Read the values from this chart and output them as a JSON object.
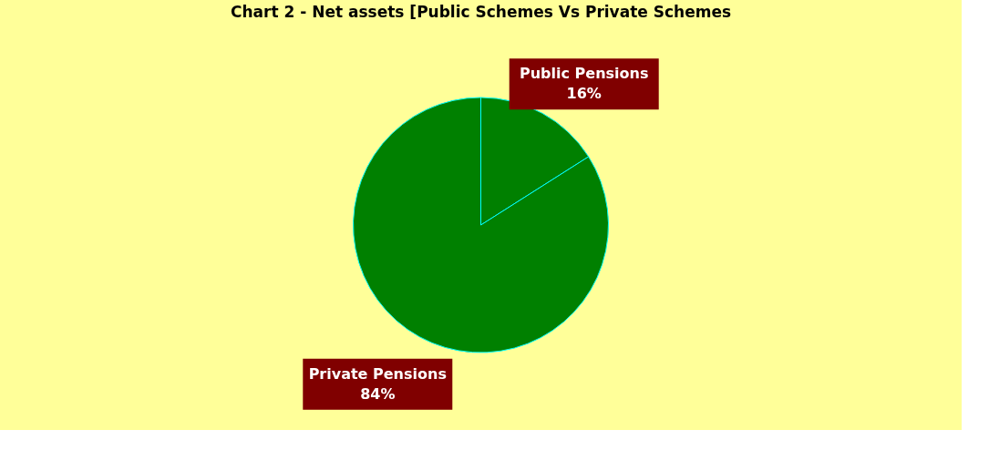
{
  "chart_data": {
    "type": "pie",
    "title": "Chart 2 - Net assets [Public Schemes Vs Private Schemes",
    "categories": [
      "Public Pensions",
      "Private Pensions"
    ],
    "values": [
      16,
      84
    ],
    "colors": [
      "#008000",
      "#008000"
    ],
    "value_labels": [
      "16%",
      "84%"
    ],
    "legend": false
  }
}
